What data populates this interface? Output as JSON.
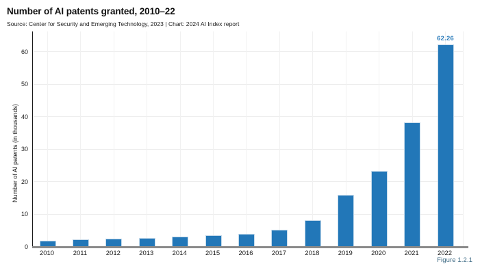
{
  "header": {
    "title": "Number of AI patents granted, 2010–22",
    "source": "Source: Center for Security and Emerging Technology, 2023 | Chart: 2024 AI Index report"
  },
  "figure_caption": "Figure 1.2.1",
  "colors": {
    "bar": "#2277b8",
    "bar_edge": "#c3d9ea",
    "value_label": "#2d7dbb",
    "caption": "#3d6a84",
    "baseline": "#8a8a8a",
    "grid_horizontal": "#ededed",
    "grid_vertical": "#f1f1f1"
  },
  "chart_data": {
    "type": "bar",
    "title": "Number of AI patents granted, 2010–22",
    "categories": [
      "2010",
      "2011",
      "2012",
      "2013",
      "2014",
      "2015",
      "2016",
      "2017",
      "2018",
      "2019",
      "2020",
      "2021",
      "2022"
    ],
    "values": [
      2.0,
      2.3,
      2.6,
      2.8,
      3.2,
      3.5,
      3.9,
      5.2,
      8.2,
      15.9,
      23.4,
      38.4,
      62.26
    ],
    "value_labels": {
      "2022": "62.26"
    },
    "xlabel": "",
    "ylabel": "Number of AI patents (in thousands)",
    "yticks": [
      0,
      10,
      20,
      30,
      40,
      50,
      60
    ],
    "ylim": [
      0,
      66.3
    ],
    "grid": true,
    "legend": "none"
  }
}
